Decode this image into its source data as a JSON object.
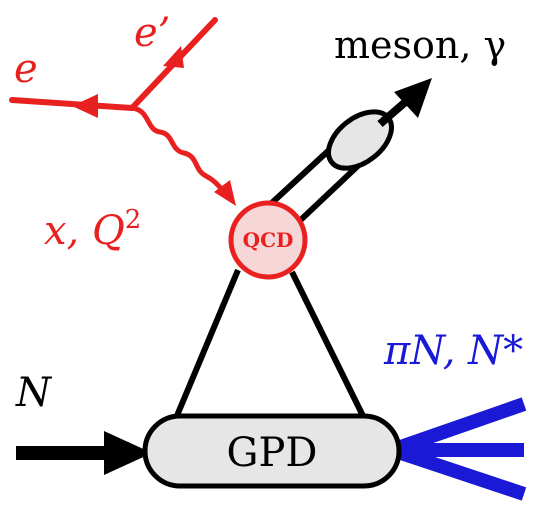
{
  "labels": {
    "electron_in": "e",
    "electron_out": "e’",
    "kinematics": "x, Q",
    "kinematics_sup": "2",
    "meson_photon": "meson, γ",
    "qcd": "QCD",
    "nucleon": "N",
    "final_state": "πN, N*",
    "gpd": "GPD"
  },
  "colors": {
    "electron": "#e8201f",
    "final_state": "#1a1ad6",
    "qcd_fill": "#f6d6d6",
    "blob_fill": "#e6e6e6",
    "line": "#000000"
  }
}
